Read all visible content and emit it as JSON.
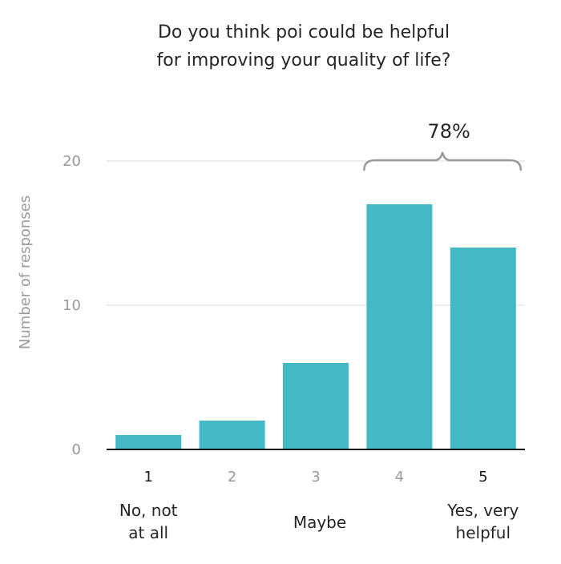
{
  "chart_data": {
    "type": "bar",
    "title_lines": [
      "Do you think poi could be helpful",
      "for improving your quality of life?"
    ],
    "ylabel": "Number of responses",
    "ylim": [
      0,
      20
    ],
    "yticks": [
      0,
      10,
      20
    ],
    "categories": [
      "1",
      "2",
      "3",
      "4",
      "5"
    ],
    "values": [
      1,
      2,
      6,
      17,
      14
    ],
    "bar_color": "#42b9c4",
    "grid": true,
    "emphasized_categories": [
      "1",
      "5"
    ],
    "anchor_labels": [
      {
        "category": "1",
        "lines": [
          "No, not",
          "at all"
        ]
      },
      {
        "category": "3",
        "lines": [
          "Maybe"
        ]
      },
      {
        "category": "5",
        "lines": [
          "Yes, very",
          "helpful"
        ]
      }
    ],
    "brace": {
      "categories": [
        "4",
        "5"
      ],
      "label": "78%"
    }
  }
}
